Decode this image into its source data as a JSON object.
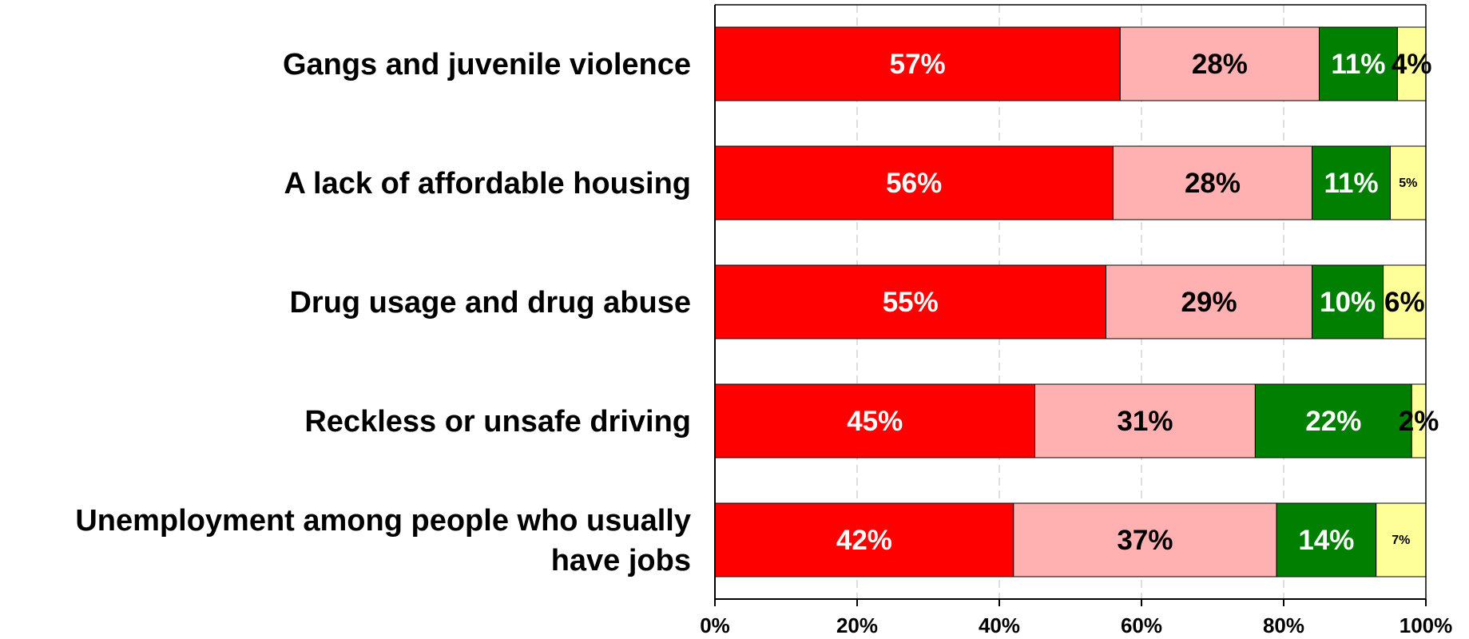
{
  "chart_data": {
    "type": "bar",
    "orientation": "horizontal",
    "stacked": true,
    "percent_stacked": true,
    "categories": [
      "Gangs and juvenile violence",
      "A lack of affordable housing",
      "Drug usage and drug abuse",
      "Reckless or unsafe driving",
      "Unemployment among people who usually have jobs"
    ],
    "category_label_lines": [
      [
        "Gangs and juvenile violence"
      ],
      [
        "A lack of affordable housing"
      ],
      [
        "Drug usage and drug abuse"
      ],
      [
        "Reckless or unsafe driving"
      ],
      [
        "Unemployment among people who usually",
        "have jobs"
      ]
    ],
    "series": [
      {
        "values": [
          57,
          56,
          55,
          45,
          42
        ],
        "labels": [
          "57%",
          "56%",
          "55%",
          "45%",
          "42%"
        ],
        "color": "#FF0000",
        "label_color": "#FFFFFF"
      },
      {
        "values": [
          28,
          28,
          29,
          31,
          37
        ],
        "labels": [
          "28%",
          "28%",
          "29%",
          "31%",
          "37%"
        ],
        "color": "#FFB0B0",
        "label_color": "#000000"
      },
      {
        "values": [
          11,
          11,
          10,
          22,
          14
        ],
        "labels": [
          "11%",
          "11%",
          "10%",
          "22%",
          "14%"
        ],
        "color": "#007F00",
        "label_color": "#FFFFFF"
      },
      {
        "values": [
          4,
          5,
          6,
          2,
          7
        ],
        "labels": [
          "4%",
          "5%",
          "6%",
          "2%",
          "7%"
        ],
        "color": "#FFFF99",
        "label_color": "#000000",
        "label_sizes": [
          "large",
          "small",
          "large",
          "large",
          "small"
        ]
      }
    ],
    "x_ticks": [
      "0%",
      "20%",
      "40%",
      "60%",
      "80%",
      "100%"
    ],
    "xlim": [
      0,
      100
    ],
    "grid": "vertical dashed",
    "legend": "none",
    "title": "",
    "xlabel": "",
    "ylabel": ""
  }
}
